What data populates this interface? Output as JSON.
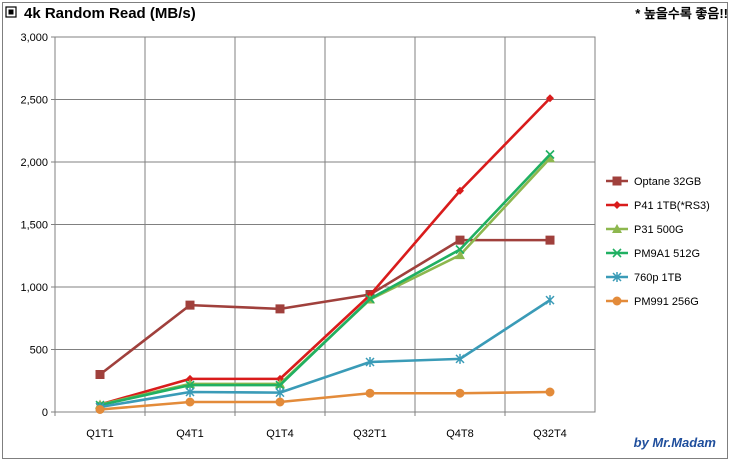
{
  "header": {
    "title": "4k Random Read (MB/s)",
    "note": "* 높을수록 좋음!!",
    "credit": "by Mr.Madam",
    "title_marker_icon": "square-marker-icon"
  },
  "chart_data": {
    "type": "line",
    "title": "4k Random Read (MB/s)",
    "xlabel": "",
    "ylabel": "",
    "categories": [
      "Q1T1",
      "Q4T1",
      "Q1T4",
      "Q32T1",
      "Q4T8",
      "Q32T4"
    ],
    "ylim": [
      0,
      3000
    ],
    "yticks": [
      0,
      500,
      1000,
      1500,
      2000,
      2500,
      3000
    ],
    "ytick_labels": [
      "0",
      "500",
      "1,000",
      "1,500",
      "2,000",
      "2,500",
      "3,000"
    ],
    "grid": true,
    "legend_position": "right",
    "series": [
      {
        "name": "Optane 32GB",
        "color": "#a0403c",
        "marker": "square",
        "values": [
          300,
          855,
          825,
          940,
          1375,
          1375
        ]
      },
      {
        "name": "P41 1TB(*RS3)",
        "color": "#d91c1c",
        "marker": "diamond",
        "values": [
          60,
          265,
          265,
          935,
          1770,
          2510
        ]
      },
      {
        "name": "P31 500G",
        "color": "#8db74e",
        "marker": "triangle",
        "values": [
          60,
          225,
          225,
          900,
          1255,
          2030
        ]
      },
      {
        "name": "PM9A1 512G",
        "color": "#20b062",
        "marker": "x",
        "values": [
          55,
          215,
          215,
          905,
          1300,
          2060
        ]
      },
      {
        "name": "760p 1TB",
        "color": "#3a9bb7",
        "marker": "star",
        "values": [
          40,
          160,
          155,
          400,
          425,
          895
        ]
      },
      {
        "name": "PM991 256G",
        "color": "#e38b3a",
        "marker": "circle",
        "values": [
          20,
          80,
          80,
          150,
          150,
          160
        ]
      }
    ]
  }
}
